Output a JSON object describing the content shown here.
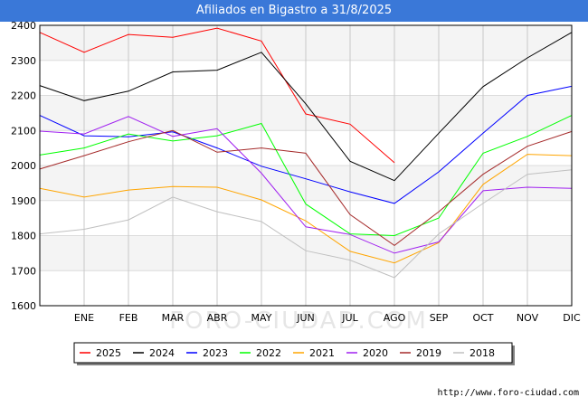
{
  "header": {
    "title": "Afiliados en Bigastro a 31/8/2025"
  },
  "footer": {
    "url": "http://www.foro-ciudad.com"
  },
  "watermark": "FORO-CIUDAD.COM",
  "chart_data": {
    "type": "line",
    "title": "Afiliados en Bigastro a 31/8/2025",
    "xlabel": "",
    "ylabel": "",
    "ylim": [
      1600,
      2400
    ],
    "yticks": [
      1600,
      1700,
      1800,
      1900,
      2000,
      2100,
      2200,
      2300,
      2400
    ],
    "categories": [
      "",
      "ENE",
      "FEB",
      "MAR",
      "ABR",
      "MAY",
      "JUN",
      "JUL",
      "AGO",
      "SEP",
      "OCT",
      "NOV",
      "DIC"
    ],
    "grid": true,
    "legend_position": "bottom",
    "series": [
      {
        "name": "2025",
        "color": "#ff0000",
        "values": [
          2380,
          2323,
          2374,
          2366,
          2392,
          2355,
          2147,
          2118,
          2008,
          null,
          null,
          null,
          null
        ]
      },
      {
        "name": "2024",
        "color": "#000000",
        "values": [
          2228,
          2185,
          2212,
          2267,
          2272,
          2323,
          2176,
          2012,
          1957,
          2092,
          2225,
          2307,
          2380
        ]
      },
      {
        "name": "2023",
        "color": "#0000ff",
        "values": [
          2143,
          2085,
          2082,
          2096,
          2050,
          1998,
          1962,
          1925,
          1892,
          1982,
          2092,
          2200,
          2226
        ]
      },
      {
        "name": "2022",
        "color": "#00ff00",
        "values": [
          2030,
          2050,
          2090,
          2070,
          2085,
          2120,
          1890,
          1805,
          1800,
          1850,
          2035,
          2083,
          2143
        ]
      },
      {
        "name": "2021",
        "color": "#ffa500",
        "values": [
          1935,
          1910,
          1930,
          1940,
          1938,
          1902,
          1842,
          1755,
          1722,
          1780,
          1946,
          2032,
          2028
        ]
      },
      {
        "name": "2020",
        "color": "#a020f0",
        "values": [
          2098,
          2090,
          2140,
          2083,
          2105,
          1978,
          1825,
          1803,
          1750,
          1782,
          1928,
          1938,
          1935
        ]
      },
      {
        "name": "2019",
        "color": "#a52a2a",
        "values": [
          1990,
          2028,
          2068,
          2100,
          2038,
          2050,
          2035,
          1860,
          1772,
          1868,
          1975,
          2055,
          2097
        ]
      },
      {
        "name": "2018",
        "color": "#c0c0c0",
        "values": [
          1805,
          1818,
          1845,
          1910,
          1868,
          1840,
          1757,
          1730,
          1680,
          1805,
          1892,
          1975,
          1988
        ]
      }
    ]
  }
}
